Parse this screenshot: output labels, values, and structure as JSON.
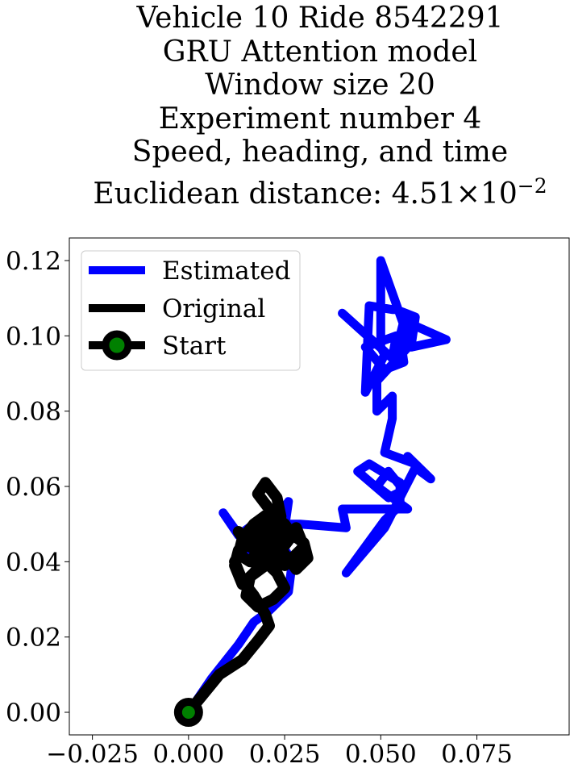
{
  "chart_data": {
    "type": "line",
    "title": "Vehicle 10 Ride 8542291",
    "subtitle_lines": [
      "GRU Attention model",
      "Window size 20",
      "Experiment number 4",
      "Speed, heading, and time"
    ],
    "metric_label": "Euclidean distance: 4.51",
    "metric_mult": "×10",
    "metric_exp": "−2",
    "xlabel": "",
    "ylabel": "",
    "xlim": [
      -0.031,
      0.099
    ],
    "ylim": [
      -0.006,
      0.126
    ],
    "x_ticks": [
      -0.025,
      0.0,
      0.025,
      0.05,
      0.075
    ],
    "x_tick_labels": [
      "−0.025",
      "0.000",
      "0.025",
      "0.050",
      "0.075"
    ],
    "y_ticks": [
      0.0,
      0.02,
      0.04,
      0.06,
      0.08,
      0.1,
      0.12
    ],
    "y_tick_labels": [
      "0.00",
      "0.02",
      "0.04",
      "0.06",
      "0.08",
      "0.10",
      "0.12"
    ],
    "grid": false,
    "legend_position": "top-left",
    "series": [
      {
        "name": "Estimated",
        "color": "#0000ff",
        "x": [
          0.0,
          0.006,
          0.013,
          0.017,
          0.021,
          0.026,
          0.027,
          0.024,
          0.022,
          0.026,
          0.025,
          0.023,
          0.018,
          0.016,
          0.009,
          0.013,
          0.017,
          0.02,
          0.024,
          0.026,
          0.029,
          0.041,
          0.04,
          0.057,
          0.049,
          0.052,
          0.056,
          0.052,
          0.044,
          0.047,
          0.055,
          0.055,
          0.051,
          0.041,
          0.051,
          0.059,
          0.063,
          0.057,
          0.059,
          0.051,
          0.053,
          0.053,
          0.049,
          0.049,
          0.058,
          0.059,
          0.054,
          0.053,
          0.047,
          0.046,
          0.051,
          0.05,
          0.05,
          0.058,
          0.067,
          0.056,
          0.055,
          0.056,
          0.051,
          0.046,
          0.054,
          0.053,
          0.04
        ],
        "y": [
          0.0,
          0.009,
          0.018,
          0.024,
          0.027,
          0.032,
          0.04,
          0.045,
          0.05,
          0.056,
          0.049,
          0.047,
          0.045,
          0.043,
          0.053,
          0.047,
          0.05,
          0.051,
          0.05,
          0.05,
          0.05,
          0.049,
          0.054,
          0.054,
          0.06,
          0.064,
          0.059,
          0.057,
          0.064,
          0.066,
          0.061,
          0.055,
          0.051,
          0.037,
          0.049,
          0.065,
          0.062,
          0.068,
          0.066,
          0.069,
          0.078,
          0.084,
          0.08,
          0.088,
          0.098,
          0.105,
          0.107,
          0.107,
          0.108,
          0.085,
          0.095,
          0.097,
          0.12,
          0.097,
          0.099,
          0.104,
          0.1,
          0.093,
          0.091,
          0.097,
          0.1,
          0.094,
          0.106
        ]
      },
      {
        "name": "Original",
        "color": "#000000",
        "x": [
          0.0,
          0.008,
          0.014,
          0.018,
          0.021,
          0.02,
          0.017,
          0.014,
          0.012,
          0.015,
          0.013,
          0.016,
          0.021,
          0.024,
          0.028,
          0.03,
          0.025,
          0.021,
          0.017,
          0.014,
          0.012,
          0.013,
          0.016,
          0.019,
          0.022,
          0.025,
          0.028,
          0.031,
          0.03,
          0.026,
          0.022,
          0.019,
          0.018,
          0.02,
          0.023,
          0.025,
          0.022,
          0.018,
          0.015,
          0.016,
          0.02,
          0.024,
          0.027,
          0.025,
          0.021,
          0.017,
          0.014,
          0.013,
          0.016,
          0.019,
          0.022,
          0.024,
          0.021,
          0.018,
          0.02,
          0.023,
          0.024,
          0.022,
          0.019
        ],
        "y": [
          0.0,
          0.01,
          0.014,
          0.019,
          0.023,
          0.026,
          0.031,
          0.035,
          0.04,
          0.045,
          0.048,
          0.044,
          0.041,
          0.046,
          0.049,
          0.044,
          0.039,
          0.042,
          0.037,
          0.034,
          0.039,
          0.043,
          0.047,
          0.05,
          0.046,
          0.042,
          0.038,
          0.041,
          0.045,
          0.048,
          0.052,
          0.049,
          0.045,
          0.04,
          0.037,
          0.033,
          0.03,
          0.028,
          0.031,
          0.036,
          0.039,
          0.043,
          0.047,
          0.05,
          0.053,
          0.05,
          0.046,
          0.042,
          0.04,
          0.044,
          0.047,
          0.051,
          0.054,
          0.058,
          0.061,
          0.057,
          0.052,
          0.048,
          0.043
        ]
      }
    ],
    "start_marker": {
      "name": "Start",
      "x": 0.0,
      "y": 0.0,
      "edge_color": "#000000",
      "face_color": "#008000"
    },
    "legend": [
      "Estimated",
      "Original",
      "Start"
    ]
  }
}
